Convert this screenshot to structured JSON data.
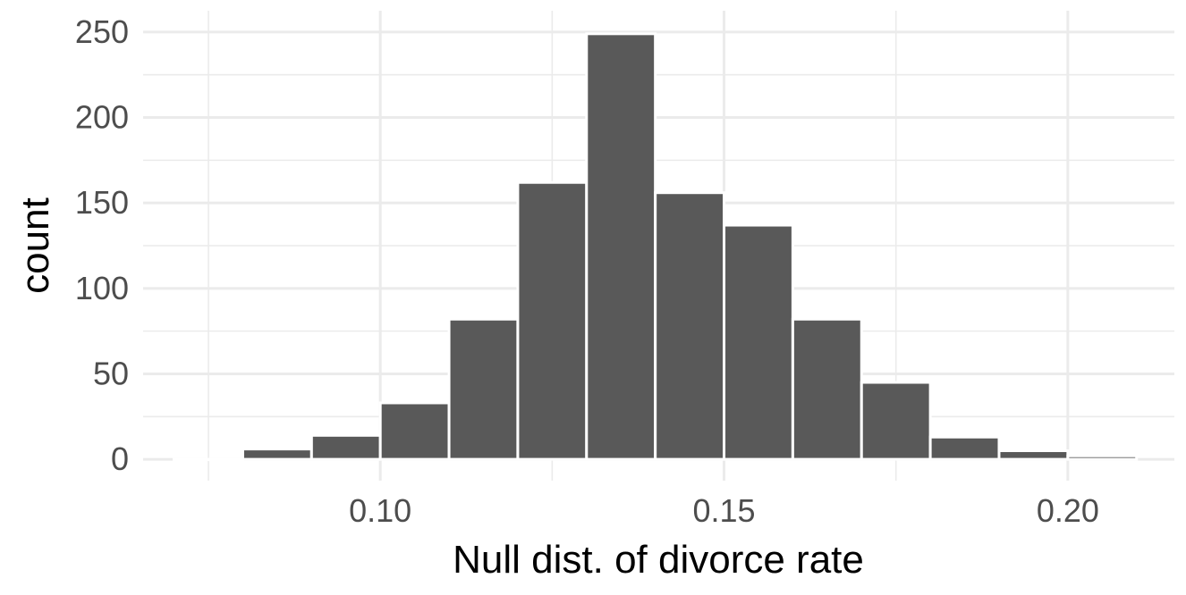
{
  "chart_data": {
    "type": "bar",
    "title": "",
    "xlabel": "Null dist. of divorce rate",
    "ylabel": "count",
    "xlim": [
      0.0655,
      0.2155
    ],
    "ylim": [
      -12.5,
      262.5
    ],
    "x_ticks": [
      0.1,
      0.15,
      0.2
    ],
    "x_tick_labels": [
      "0.10",
      "0.15",
      "0.20"
    ],
    "x_minor_ticks": [
      0.075,
      0.125,
      0.175
    ],
    "y_ticks": [
      0,
      50,
      100,
      150,
      200,
      250
    ],
    "y_tick_labels": [
      "0",
      "50",
      "100",
      "150",
      "200",
      "250"
    ],
    "y_minor_ticks": [
      25,
      75,
      125,
      175,
      225
    ],
    "grid": true,
    "legend": "none",
    "bin_width": 0.01,
    "bin_centers": [
      0.075,
      0.085,
      0.095,
      0.105,
      0.115,
      0.125,
      0.135,
      0.145,
      0.155,
      0.165,
      0.175,
      0.185,
      0.195,
      0.205
    ],
    "values": [
      0,
      6,
      14,
      33,
      82,
      162,
      249,
      156,
      137,
      82,
      45,
      13,
      5,
      2
    ],
    "bar_color": "#595959",
    "bar_outline": "#ffffff",
    "grid_color": "#ebebeb"
  }
}
